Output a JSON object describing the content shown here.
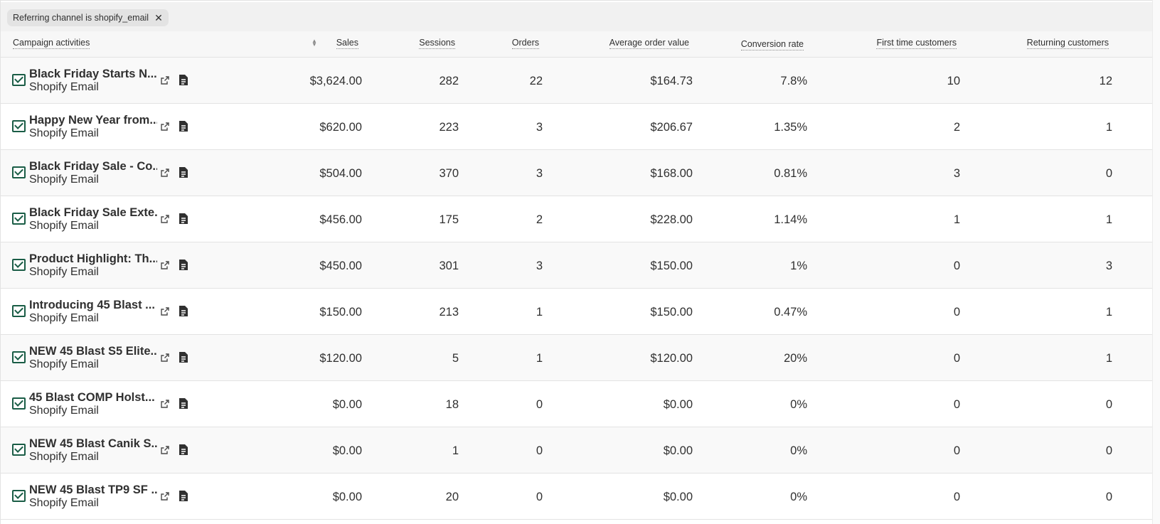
{
  "filter": {
    "label": "Referring channel is shopify_email",
    "remove_icon": "close-icon"
  },
  "columns": [
    "Campaign activities",
    "Sales",
    "Sessions",
    "Orders",
    "Average order value",
    "Conversion rate",
    "First time customers",
    "Returning customers"
  ],
  "rows": [
    {
      "name": "Black Friday Starts N...",
      "channel": "Shopify Email",
      "sales": "$3,624.00",
      "sessions": "282",
      "orders": "22",
      "aov": "$164.73",
      "conversion": "7.8%",
      "first_time": "10",
      "returning": "12"
    },
    {
      "name": "Happy New Year from...",
      "channel": "Shopify Email",
      "sales": "$620.00",
      "sessions": "223",
      "orders": "3",
      "aov": "$206.67",
      "conversion": "1.35%",
      "first_time": "2",
      "returning": "1"
    },
    {
      "name": "Black Friday Sale - Co...",
      "channel": "Shopify Email",
      "sales": "$504.00",
      "sessions": "370",
      "orders": "3",
      "aov": "$168.00",
      "conversion": "0.81%",
      "first_time": "3",
      "returning": "0"
    },
    {
      "name": "Black Friday Sale Exte...",
      "channel": "Shopify Email",
      "sales": "$456.00",
      "sessions": "175",
      "orders": "2",
      "aov": "$228.00",
      "conversion": "1.14%",
      "first_time": "1",
      "returning": "1"
    },
    {
      "name": "Product Highlight: Th...",
      "channel": "Shopify Email",
      "sales": "$450.00",
      "sessions": "301",
      "orders": "3",
      "aov": "$150.00",
      "conversion": "1%",
      "first_time": "0",
      "returning": "3"
    },
    {
      "name": "Introducing 45 Blast ...",
      "channel": "Shopify Email",
      "sales": "$150.00",
      "sessions": "213",
      "orders": "1",
      "aov": "$150.00",
      "conversion": "0.47%",
      "first_time": "0",
      "returning": "1"
    },
    {
      "name": "NEW 45 Blast S5 Elite...",
      "channel": "Shopify Email",
      "sales": "$120.00",
      "sessions": "5",
      "orders": "1",
      "aov": "$120.00",
      "conversion": "20%",
      "first_time": "0",
      "returning": "1"
    },
    {
      "name": "45 Blast COMP Holst...",
      "channel": "Shopify Email",
      "sales": "$0.00",
      "sessions": "18",
      "orders": "0",
      "aov": "$0.00",
      "conversion": "0%",
      "first_time": "0",
      "returning": "0"
    },
    {
      "name": "NEW 45 Blast Canik S...",
      "channel": "Shopify Email",
      "sales": "$0.00",
      "sessions": "1",
      "orders": "0",
      "aov": "$0.00",
      "conversion": "0%",
      "first_time": "0",
      "returning": "0"
    },
    {
      "name": "NEW 45 Blast TP9 SF ...",
      "channel": "Shopify Email",
      "sales": "$0.00",
      "sessions": "20",
      "orders": "0",
      "aov": "$0.00",
      "conversion": "0%",
      "first_time": "0",
      "returning": "0"
    }
  ],
  "colors": {
    "icon_green": "#1a5d46",
    "header_bg": "#f7f7f7",
    "alt_row_bg": "#f9f9f9",
    "chip_bg": "#e3e3e3"
  }
}
